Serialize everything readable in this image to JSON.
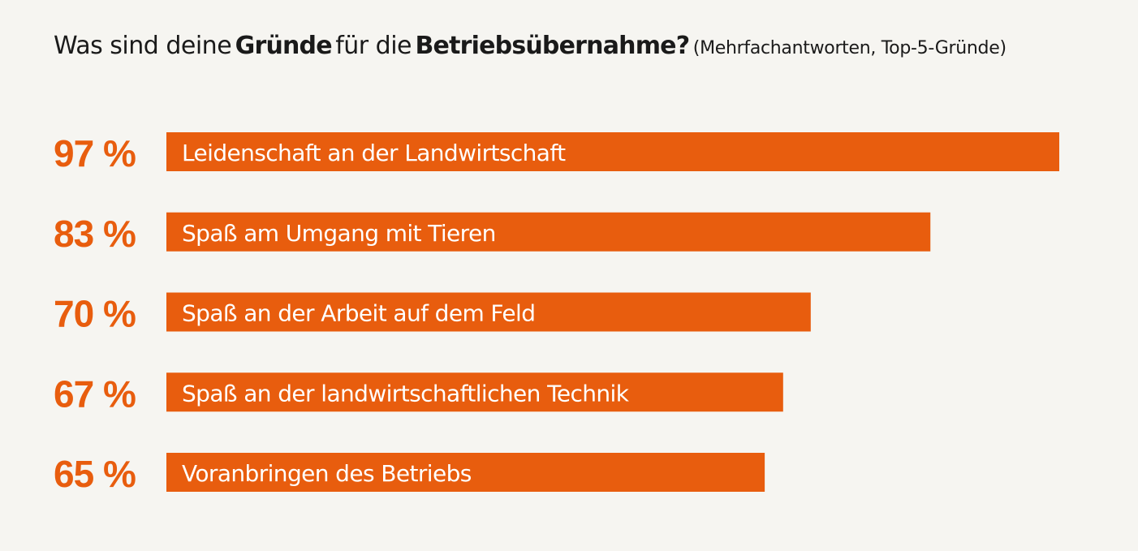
{
  "title": {
    "part1": "Was sind deine",
    "bold1": "Gründe",
    "part2": "für die",
    "bold2": "Betriebsübernahme?",
    "note": "(Mehrfachantworten, Top-5-Gründe)"
  },
  "colors": {
    "bar": "#e85d0e",
    "value_text": "#e85d0e",
    "bar_label": "#ffffff",
    "background": "#f6f5f1"
  },
  "chart_data": {
    "type": "bar",
    "orientation": "horizontal",
    "unit": "%",
    "xlim": [
      0,
      97
    ],
    "grid": false,
    "legend": "none",
    "categories": [
      "Leidenschaft an der Landwirtschaft",
      "Spaß am Umgang mit Tieren",
      "Spaß an der Arbeit auf dem Feld",
      "Spaß an der landwirtschaftlichen Technik",
      "Voranbringen des Betriebs"
    ],
    "values": [
      97,
      83,
      70,
      67,
      65
    ],
    "value_labels": [
      "97 %",
      "83 %",
      "70 %",
      "67 %",
      "65 %"
    ]
  }
}
